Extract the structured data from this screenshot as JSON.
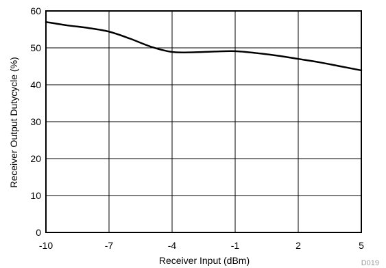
{
  "figure_id": "D019",
  "chart_data": {
    "type": "line",
    "xlabel": "Receiver Input (dBm)",
    "ylabel": "Receiver Output Dutycycle (%)",
    "xlim": [
      -10,
      5
    ],
    "ylim": [
      0,
      60
    ],
    "x_ticks": [
      -10,
      -7,
      -4,
      -1,
      2,
      5
    ],
    "y_ticks": [
      0,
      10,
      20,
      30,
      40,
      50,
      60
    ],
    "x_tick_labels": [
      "-10",
      "-7",
      "-4",
      "-1",
      "2",
      "5"
    ],
    "y_tick_labels": [
      "0",
      "10",
      "20",
      "30",
      "40",
      "50",
      "60"
    ],
    "grid": true,
    "series": [
      {
        "color": "#000000",
        "x": [
          -10,
          -9,
          -8,
          -7,
          -6,
          -5,
          -4,
          -3,
          -2,
          -1,
          0,
          1,
          2,
          3,
          4,
          5
        ],
        "y": [
          57.0,
          56.1,
          55.4,
          54.4,
          52.5,
          50.3,
          48.9,
          48.8,
          49.0,
          49.1,
          48.6,
          47.9,
          47.0,
          46.1,
          45.0,
          43.9
        ]
      }
    ]
  },
  "colors": {
    "axis": "#000000",
    "grid": "#000000",
    "line": "#000000",
    "figure_id": "#9a9a9a"
  }
}
